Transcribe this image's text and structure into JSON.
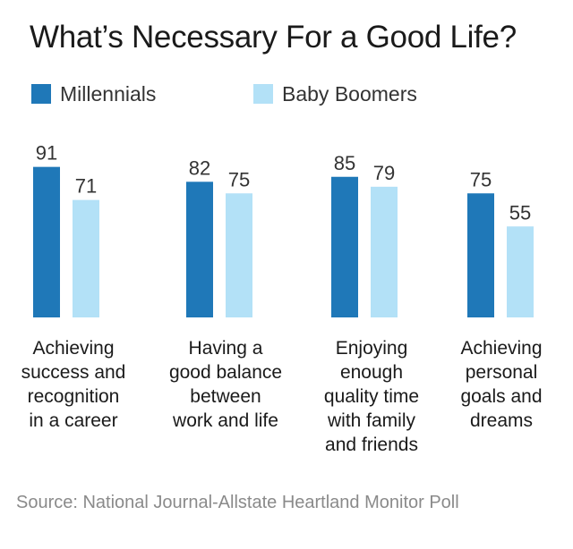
{
  "chart_data": {
    "type": "bar",
    "title": "What’s Necessary For a Good Life?",
    "categories": [
      "Achieving success and recognition in a career",
      "Having a good balance between work and life",
      "Enjoying enough quality time with family and friends",
      "Achieving personal goals and dreams"
    ],
    "series": [
      {
        "name": "Millennials",
        "values": [
          91,
          82,
          85,
          75
        ],
        "color": "#1f78b8"
      },
      {
        "name": "Baby Boomers",
        "values": [
          71,
          75,
          79,
          55
        ],
        "color": "#b3e1f7"
      }
    ],
    "xlabel": "",
    "ylabel": "",
    "ylim": [
      0,
      100
    ],
    "grid": false,
    "legend_position": "top-left",
    "data_labels": true
  },
  "category_labels": [
    [
      "Achieving",
      "success and",
      "recognition",
      "in a career"
    ],
    [
      "Having a",
      "good balance",
      "between",
      "work and life"
    ],
    [
      "Enjoying",
      "enough",
      "quality time",
      "with family",
      "and friends"
    ],
    [
      "Achieving",
      "personal",
      "goals and",
      "dreams"
    ]
  ],
  "source": "Source: National Journal-Allstate Heartland Monitor Poll"
}
